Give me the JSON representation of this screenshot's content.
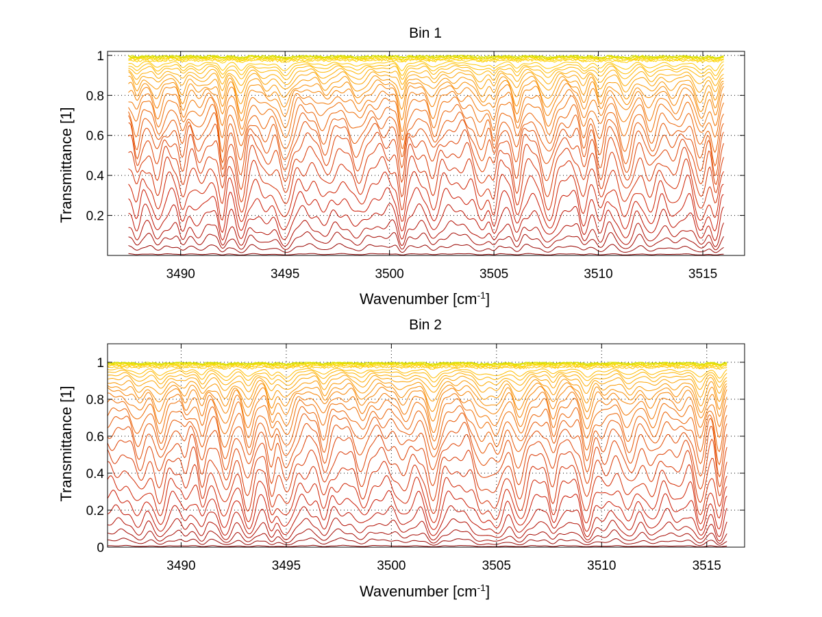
{
  "chart_data": [
    {
      "type": "line",
      "title": "Bin 1",
      "xlabel": "Wavenumber [cm",
      "xlabel_sup": "-1",
      "xlabel_end": "]",
      "ylabel": "Transmittance [1]",
      "xlim": [
        3486.5,
        3517.0
      ],
      "ylim": [
        0.0,
        1.02
      ],
      "grid": true,
      "xticks": [
        3490,
        3495,
        3500,
        3505,
        3510,
        3515
      ],
      "xtick_labels": [
        "3490",
        "3495",
        "3500",
        "3505",
        "3510",
        "3515"
      ],
      "yticks": [
        0.2,
        0.4,
        0.6,
        0.8,
        1.0
      ],
      "ytick_labels": [
        "0.2",
        "0.4",
        "0.6",
        "0.8",
        "1"
      ],
      "series_count": 30,
      "x_data_range": [
        3487.5,
        3516.0
      ],
      "line_depths": [
        0.01,
        0.06,
        0.12,
        0.18,
        0.26,
        0.34,
        0.42,
        0.5,
        0.57,
        0.63,
        0.68,
        0.72,
        0.76,
        0.8,
        0.83,
        0.86,
        0.88,
        0.9,
        0.92,
        0.935,
        0.95,
        0.96,
        0.97,
        0.977,
        0.983,
        0.988,
        0.992,
        0.995,
        0.997,
        0.999
      ],
      "absorption_lines_cm-1": [
        3487.9,
        3488.9,
        3490.1,
        3490.9,
        3492.0,
        3492.9,
        3494.1,
        3495.0,
        3496.9,
        3498.5,
        3500.6,
        3502.1,
        3504.4,
        3505.0,
        3506.1,
        3507.6,
        3509.3,
        3510.1,
        3511.3,
        3512.5,
        3513.6,
        3514.9,
        3515.6
      ],
      "colors": [
        "#8b0000",
        "#c81400",
        "#e14600",
        "#f57c00",
        "#ffb000",
        "#ffd700",
        "#d4e000"
      ]
    },
    {
      "type": "line",
      "title": "Bin 2",
      "xlabel": "Wavenumber [cm",
      "xlabel_sup": "-1",
      "xlabel_end": "]",
      "ylabel": "Transmittance [1]",
      "xlim": [
        3486.5,
        3516.8
      ],
      "ylim": [
        0.0,
        1.1
      ],
      "grid": true,
      "xticks": [
        3490,
        3495,
        3500,
        3505,
        3510,
        3515
      ],
      "xtick_labels": [
        "3490",
        "3495",
        "3500",
        "3505",
        "3510",
        "3515"
      ],
      "yticks": [
        0,
        0.2,
        0.4,
        0.6,
        0.8,
        1.0
      ],
      "ytick_labels": [
        "0",
        "0.2",
        "0.4",
        "0.6",
        "0.8",
        "1"
      ],
      "series_count": 30,
      "x_data_range": [
        3486.5,
        3516.0
      ],
      "line_depths": [
        0.01,
        0.05,
        0.1,
        0.16,
        0.23,
        0.31,
        0.39,
        0.47,
        0.55,
        0.62,
        0.68,
        0.73,
        0.77,
        0.81,
        0.84,
        0.87,
        0.89,
        0.91,
        0.93,
        0.945,
        0.958,
        0.968,
        0.976,
        0.983,
        0.988,
        0.992,
        0.995,
        0.997,
        0.999,
        1.0
      ],
      "absorption_lines_cm-1": [
        3488.0,
        3489.0,
        3490.2,
        3491.0,
        3492.1,
        3493.2,
        3494.3,
        3495.0,
        3496.8,
        3498.6,
        3500.6,
        3502.0,
        3504.3,
        3505.0,
        3506.1,
        3507.7,
        3509.3,
        3510.1,
        3511.3,
        3512.4,
        3513.6,
        3514.7,
        3515.6
      ],
      "colors": [
        "#8b0000",
        "#c81400",
        "#e14600",
        "#f57c00",
        "#ffb000",
        "#ffd700",
        "#d4e000"
      ]
    }
  ]
}
